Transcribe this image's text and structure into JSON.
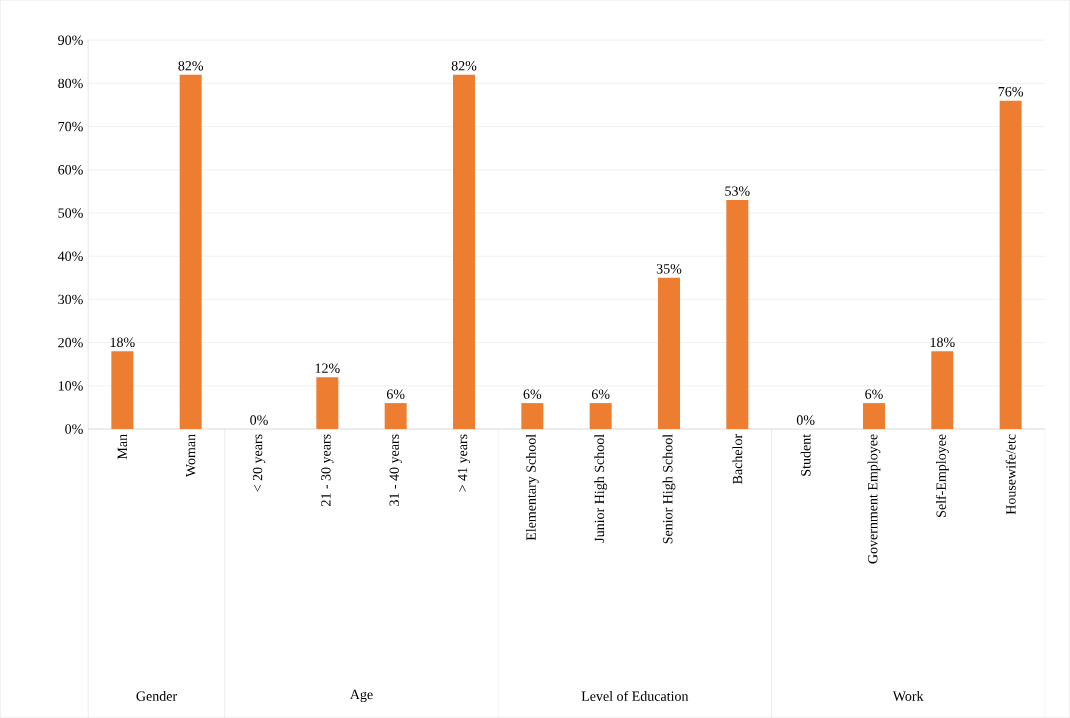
{
  "chart_data": {
    "type": "bar",
    "categories": [
      "Man",
      "Woman",
      "< 20 years",
      "21 - 30 years",
      "31 - 40 years",
      "> 41 years",
      "Elementary School",
      "Junior High School",
      "Senior High School",
      "Bachelor",
      "Student",
      "Government Employee",
      "Self-Employee",
      "Housewife/etc"
    ],
    "values": [
      18,
      82,
      0,
      12,
      6,
      82,
      6,
      6,
      35,
      53,
      0,
      6,
      18,
      76
    ],
    "value_labels": [
      "18%",
      "82%",
      "0%",
      "12%",
      "6%",
      "82%",
      "6%",
      "6%",
      "35%",
      "53%",
      "0%",
      "6%",
      "18%",
      "76%"
    ],
    "color": "#ed7d31",
    "ylim": [
      0,
      90
    ],
    "yticks": [
      {
        "value": 0,
        "label": "0%"
      },
      {
        "value": 10,
        "label": "10%"
      },
      {
        "value": 20,
        "label": "20%"
      },
      {
        "value": 30,
        "label": "30%"
      },
      {
        "value": 40,
        "label": "40%"
      },
      {
        "value": 50,
        "label": "50%"
      },
      {
        "value": 60,
        "label": "60%"
      },
      {
        "value": 70,
        "label": "70%"
      },
      {
        "value": 80,
        "label": "80%"
      },
      {
        "value": 90,
        "label": "90%"
      }
    ],
    "grid": "y",
    "annotations": [
      "Gender",
      "Age",
      "Level of Education",
      "Work"
    ]
  }
}
